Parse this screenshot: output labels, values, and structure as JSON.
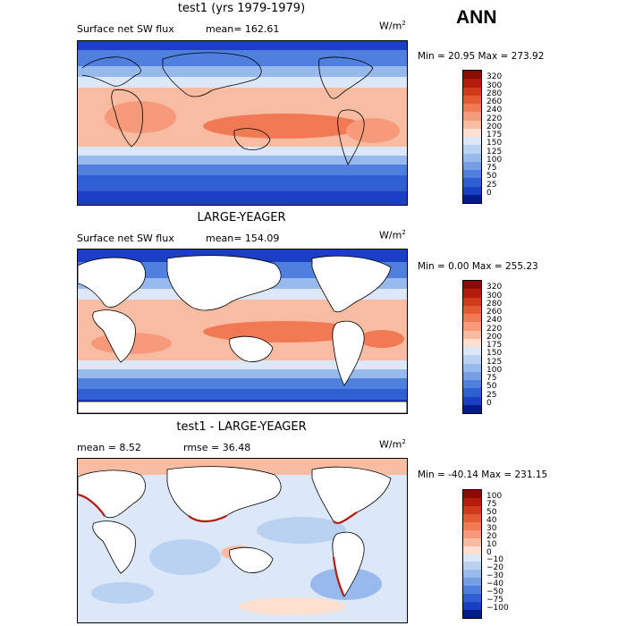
{
  "season": "ANN",
  "panels": [
    {
      "title": "test1 (yrs 1979-1979)",
      "variable": "Surface net SW flux",
      "stat1": "mean= 162.61",
      "stat2": "",
      "unit_base": "W/m",
      "unit_exp": "2",
      "minmax": "Min =  20.95 Max = 273.92",
      "map_style": "model"
    },
    {
      "title": "LARGE-YEAGER",
      "variable": "Surface net SW flux",
      "stat1": "mean= 154.09",
      "stat2": "",
      "unit_base": "W/m",
      "unit_exp": "2",
      "minmax": "Min =   0.00 Max = 255.23",
      "map_style": "obs"
    },
    {
      "title": "test1 - LARGE-YEAGER",
      "variable": "",
      "stat1": "mean =    8.52",
      "stat2": "rmse =   36.48",
      "unit_base": "W/m",
      "unit_exp": "2",
      "minmax": "Min = -40.14 Max = 231.15",
      "map_style": "diff"
    }
  ],
  "colorbars": [
    {
      "labels": [
        "320",
        "300",
        "280",
        "260",
        "240",
        "220",
        "200",
        "175",
        "150",
        "125",
        "100",
        "75",
        "50",
        "25",
        "0"
      ],
      "colors": [
        "#8b0b05",
        "#b21c0c",
        "#cf3a1b",
        "#e45a33",
        "#f17a55",
        "#f69a7b",
        "#f8bca2",
        "#fde0cf",
        "#dce8f7",
        "#b9d2f1",
        "#98b9ec",
        "#769ee4",
        "#5080dd",
        "#2f5fd3",
        "#1a3fc5",
        "#041b8a"
      ]
    },
    {
      "labels": [
        "320",
        "300",
        "280",
        "260",
        "240",
        "220",
        "200",
        "175",
        "150",
        "125",
        "100",
        "75",
        "50",
        "25",
        "0"
      ],
      "colors": [
        "#8b0b05",
        "#b21c0c",
        "#cf3a1b",
        "#e45a33",
        "#f17a55",
        "#f69a7b",
        "#f8bca2",
        "#fde0cf",
        "#dce8f7",
        "#b9d2f1",
        "#98b9ec",
        "#769ee4",
        "#5080dd",
        "#2f5fd3",
        "#1a3fc5",
        "#041b8a"
      ]
    },
    {
      "labels": [
        "100",
        "75",
        "50",
        "40",
        "30",
        "20",
        "10",
        "0",
        "−10",
        "−20",
        "−30",
        "−40",
        "−50",
        "−75",
        "−100"
      ],
      "colors": [
        "#8b0b05",
        "#b21c0c",
        "#cf3a1b",
        "#e45a33",
        "#f17a55",
        "#f69a7b",
        "#f8bca2",
        "#fde0cf",
        "#dce8f7",
        "#b9d2f1",
        "#98b9ec",
        "#769ee4",
        "#5080dd",
        "#2f5fd3",
        "#1a3fc5",
        "#041b8a"
      ]
    }
  ]
}
